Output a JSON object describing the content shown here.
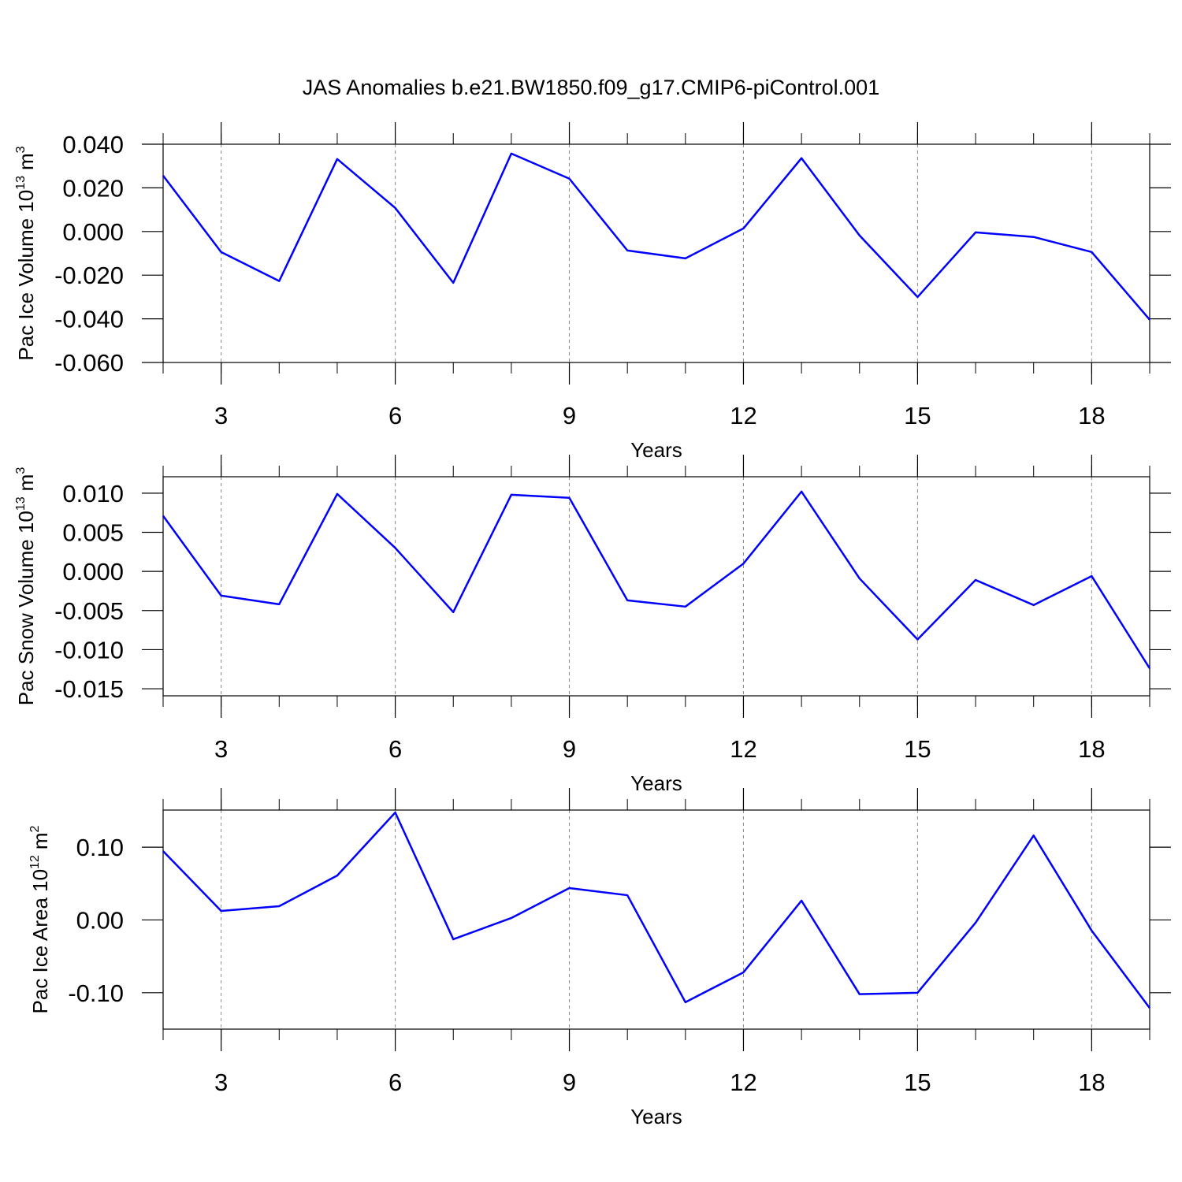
{
  "chart_data": [
    {
      "type": "line",
      "title": "JAS Anomalies b.e21.BW1850.f09_g17.CMIP6-piControl.001",
      "ylabel": {
        "main": "Pac Ice Volume 10",
        "exponent": "13",
        "unit": "m",
        "unit_exponent": "3"
      },
      "xlabel": "Years",
      "x": [
        2,
        3,
        4,
        5,
        6,
        7,
        8,
        9,
        10,
        11,
        12,
        13,
        14,
        15,
        16,
        17,
        18,
        19
      ],
      "series": [
        {
          "color": "#0000ff",
          "values": [
            0.0256,
            -0.0094,
            -0.0227,
            0.0332,
            0.0108,
            -0.0235,
            0.0357,
            0.0242,
            -0.0087,
            -0.0123,
            0.0014,
            0.0336,
            -0.0018,
            -0.03,
            -0.0004,
            -0.0025,
            -0.0094,
            -0.0404
          ]
        }
      ],
      "xlim": [
        2,
        19
      ],
      "xticks": [
        3,
        6,
        9,
        12,
        15,
        18
      ],
      "ylim": [
        -0.06,
        0.04
      ],
      "yticks": [
        {
          "value": -0.06,
          "label": "-0.060"
        },
        {
          "value": -0.04,
          "label": "-0.040"
        },
        {
          "value": -0.02,
          "label": "-0.020"
        },
        {
          "value": 0,
          "label": "0.000"
        },
        {
          "value": 0.02,
          "label": "0.020"
        },
        {
          "value": 0.04,
          "label": "0.040"
        }
      ],
      "grid": "x"
    },
    {
      "type": "line",
      "ylabel": {
        "main": "Pac Snow Volume 10",
        "exponent": "13",
        "unit": "m",
        "unit_exponent": "3"
      },
      "xlabel": "Years",
      "x": [
        2,
        3,
        4,
        5,
        6,
        7,
        8,
        9,
        10,
        11,
        12,
        13,
        14,
        15,
        16,
        17,
        18,
        19
      ],
      "series": [
        {
          "color": "#0000ff",
          "values": [
            0.0071,
            -0.0031,
            -0.0042,
            0.0099,
            0.003,
            -0.0052,
            0.0098,
            0.0094,
            -0.0037,
            -0.0045,
            0.001,
            0.0102,
            -0.0009,
            -0.0087,
            -0.0011,
            -0.0043,
            -0.0006,
            -0.0124
          ]
        }
      ],
      "xlim": [
        2,
        19
      ],
      "xticks": [
        3,
        6,
        9,
        12,
        15,
        18
      ],
      "ylim": [
        -0.0159,
        0.0121
      ],
      "yticks": [
        {
          "value": -0.015,
          "label": "-0.015"
        },
        {
          "value": -0.01,
          "label": "-0.010"
        },
        {
          "value": -0.005,
          "label": "-0.005"
        },
        {
          "value": 0,
          "label": "0.000"
        },
        {
          "value": 0.005,
          "label": "0.005"
        },
        {
          "value": 0.01,
          "label": "0.010"
        }
      ],
      "grid": "x"
    },
    {
      "type": "line",
      "ylabel": {
        "main": "Pac Ice Area 10",
        "exponent": "12",
        "unit": "m",
        "unit_exponent": "2"
      },
      "xlabel": "Years",
      "x": [
        2,
        3,
        4,
        5,
        6,
        7,
        8,
        9,
        10,
        11,
        12,
        13,
        14,
        15,
        16,
        17,
        18,
        19
      ],
      "series": [
        {
          "color": "#0000ff",
          "values": [
            0.0946,
            0.0124,
            0.0189,
            0.061,
            0.1476,
            -0.0265,
            0.0027,
            0.0438,
            0.034,
            -0.113,
            -0.072,
            0.0265,
            -0.102,
            -0.1,
            -0.0038,
            0.116,
            -0.0146,
            -0.121
          ]
        }
      ],
      "xlim": [
        2,
        19
      ],
      "xticks": [
        3,
        6,
        9,
        12,
        15,
        18
      ],
      "ylim": [
        -0.15,
        0.151
      ],
      "yticks": [
        {
          "value": -0.1,
          "label": "-0.10"
        },
        {
          "value": 0,
          "label": "0.00"
        },
        {
          "value": 0.1,
          "label": "0.10"
        }
      ],
      "grid": "x"
    }
  ]
}
